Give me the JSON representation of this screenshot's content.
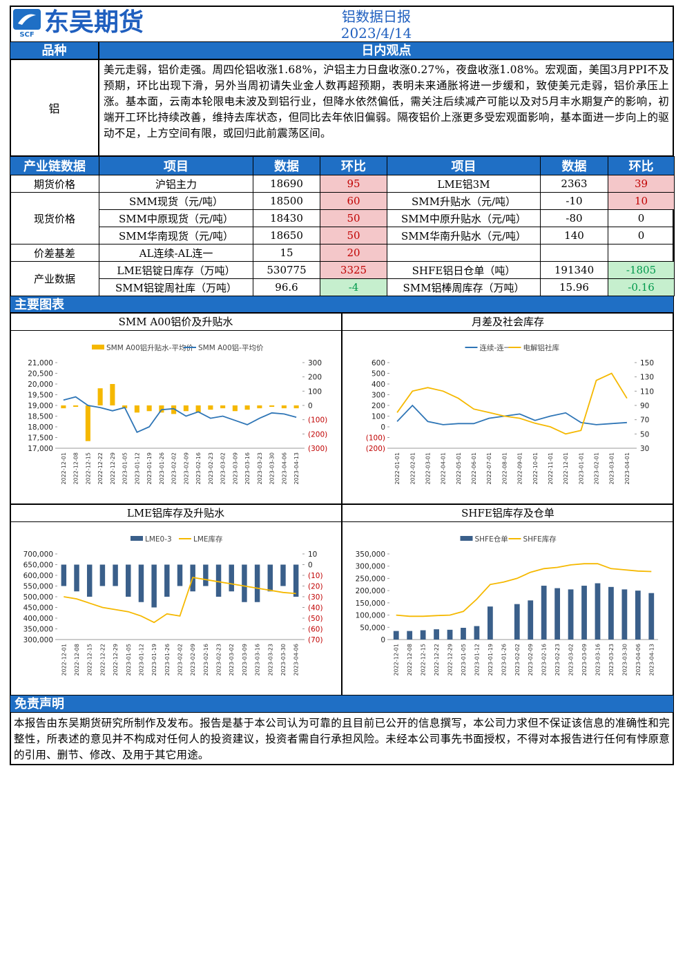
{
  "header": {
    "logo": "东吴期货",
    "logo_sub": "SCF",
    "title": "铝数据日报",
    "date": "2023/4/14"
  },
  "view": {
    "col1": "品种",
    "col2": "日内观点",
    "item": "铝",
    "text": "美元走弱，铝价走强。周四伦铝收涨1.68%，沪铝主力日盘收涨0.27%，夜盘收涨1.08%。宏观面，美国3月PPI不及预期，环比出现下滑，另外当周初请失业金人数再超预期，表明未来通胀将进一步缓和，致使美元走弱，铝价承压上涨。基本面，云南本轮限电未波及到铝行业，但降水依然偏低，需关注后续减产可能以及对5月丰水期复产的影响，初端开工环比持续改善，维持去库状态，但同比去年依旧偏弱。隔夜铝价上涨更多受宏观面影响，基本面进一步向上的驱动不足，上方空间有限，或回归此前震荡区间。"
  },
  "table": {
    "headers": [
      "产业链数据",
      "项目",
      "数据",
      "环比",
      "项目",
      "数据",
      "环比"
    ],
    "groups": [
      {
        "name": "期货价格",
        "rows": [
          [
            "沪铝主力",
            "18690",
            "95",
            "LME铝3M",
            "2363",
            "39"
          ]
        ]
      },
      {
        "name": "现货价格",
        "rows": [
          [
            "SMM现货（元/吨）",
            "18500",
            "60",
            "SMM升贴水（元/吨）",
            "-10",
            "10"
          ],
          [
            "SMM中原现货（元/吨）",
            "18430",
            "50",
            "SMM中原升贴水（元/吨）",
            "-80",
            "0"
          ],
          [
            "SMM华南现货（元/吨）",
            "18650",
            "50",
            "SMM华南升贴水（元/吨）",
            "140",
            "0"
          ]
        ]
      },
      {
        "name": "价差基差",
        "rows": [
          [
            "AL连续-AL连一",
            "15",
            "20"
          ]
        ]
      },
      {
        "name": "产业数据",
        "rows": [
          [
            "LME铝锭日库存（万吨）",
            "530775",
            "3325",
            "SHFE铝日仓单（吨）",
            "191340",
            "-1805"
          ],
          [
            "SMM铝锭周社库（万吨）",
            "96.6",
            "-4",
            "SMM铝棒周库存（万吨）",
            "15.96",
            "-0.16"
          ]
        ]
      }
    ]
  },
  "charts_title": "主要图表",
  "charts": [
    {
      "type": "combo",
      "title": "SMM A00铝价及升贴水",
      "legend": "top",
      "categories": [
        "2022-12-01",
        "2022-12-08",
        "2022-12-15",
        "2022-12-22",
        "2022-12-29",
        "2023-01-05",
        "2023-01-12",
        "2023-01-19",
        "2023-01-26",
        "2023-02-02",
        "2023-02-09",
        "2023-02-16",
        "2023-02-23",
        "2023-03-02",
        "2023-03-09",
        "2023-03-16",
        "2023-03-23",
        "2023-03-30",
        "2023-04-06",
        "2023-04-13"
      ],
      "ylim": [
        17000,
        21000
      ],
      "yticks": [
        {
          "value": 17000,
          "label": "17,000"
        },
        {
          "value": 17500,
          "label": "17,500"
        },
        {
          "value": 18000,
          "label": "18,000"
        },
        {
          "value": 18500,
          "label": "18,500"
        },
        {
          "value": 19000,
          "label": "19,000"
        },
        {
          "value": 19500,
          "label": "19,500"
        },
        {
          "value": 20000,
          "label": "20,000"
        },
        {
          "value": 20500,
          "label": "20,500"
        },
        {
          "value": 21000,
          "label": "21,000"
        }
      ],
      "y2lim": [
        -300,
        300
      ],
      "y2ticks": [
        {
          "value": -300,
          "label": "(300)"
        },
        {
          "value": -200,
          "label": "(200)"
        },
        {
          "value": -100,
          "label": "(100)"
        },
        0,
        100,
        200,
        300
      ],
      "series": [
        {
          "name": "SMM A00铝升贴水-平均价",
          "type": "bar",
          "axis": "y2",
          "color": "#f5b800",
          "values": [
            -20,
            -10,
            -250,
            120,
            150,
            -20,
            -50,
            -40,
            -50,
            -60,
            -40,
            -50,
            -30,
            -20,
            -40,
            -30,
            -20,
            -10,
            -20,
            -20
          ]
        },
        {
          "name": "SMM A00铝-平均价",
          "type": "line",
          "color": "#2e75b6",
          "values": [
            19250,
            19400,
            19000,
            18900,
            18750,
            18900,
            17750,
            18000,
            18800,
            18850,
            18500,
            18700,
            18400,
            18500,
            18300,
            18100,
            18400,
            18650,
            18600,
            18450
          ]
        }
      ]
    },
    {
      "type": "combo",
      "title": "月差及社会库存",
      "legend": "top",
      "categories": [
        "2022-01-01",
        "2022-02-01",
        "2022-03-01",
        "2022-04-01",
        "2022-05-01",
        "2022-06-01",
        "2022-07-01",
        "2022-08-01",
        "2022-09-01",
        "2022-10-01",
        "2022-11-01",
        "2022-12-01",
        "2023-01-01",
        "2023-02-01",
        "2023-03-01",
        "2023-04-01"
      ],
      "ylim": [
        -200,
        600
      ],
      "yticks": [
        {
          "value": -200,
          "label": "(200)"
        },
        {
          "value": -100,
          "label": "(100)"
        },
        0,
        100,
        200,
        300,
        400,
        500,
        600
      ],
      "y2lim": [
        30,
        150
      ],
      "y2ticks": [
        30,
        50,
        70,
        90,
        110,
        130,
        150
      ],
      "series": [
        {
          "name": "连续-连一",
          "type": "line",
          "color": "#2e75b6",
          "values": [
            50,
            200,
            50,
            20,
            30,
            30,
            80,
            100,
            120,
            60,
            100,
            130,
            40,
            20,
            30,
            40
          ]
        },
        {
          "name": "电解铝社库",
          "type": "line",
          "axis": "y2",
          "color": "#f5b800",
          "values": [
            80,
            110,
            115,
            110,
            100,
            85,
            80,
            75,
            72,
            65,
            60,
            50,
            55,
            125,
            135,
            100
          ]
        }
      ]
    },
    {
      "type": "combo",
      "title": "LME铝库存及升贴水",
      "legend": "top",
      "categories": [
        "2022-12-01",
        "2022-12-08",
        "2022-12-15",
        "2022-12-22",
        "2022-12-29",
        "2023-01-05",
        "2023-01-12",
        "2023-01-19",
        "2023-01-26",
        "2023-02-02",
        "2023-02-09",
        "2023-02-16",
        "2023-02-23",
        "2023-03-02",
        "2023-03-09",
        "2023-03-16",
        "2023-03-23",
        "2023-03-30",
        "2023-04-06"
      ],
      "ylim": [
        300000,
        700000
      ],
      "yticks": [
        {
          "value": 300000,
          "label": "300,000"
        },
        {
          "value": 350000,
          "label": "350,000"
        },
        {
          "value": 400000,
          "label": "400,000"
        },
        {
          "value": 450000,
          "label": "450,000"
        },
        {
          "value": 500000,
          "label": "500,000"
        },
        {
          "value": 550000,
          "label": "550,000"
        },
        {
          "value": 600000,
          "label": "600,000"
        },
        {
          "value": 650000,
          "label": "650,000"
        },
        {
          "value": 700000,
          "label": "700,000"
        }
      ],
      "y2lim": [
        -70,
        10
      ],
      "y2ticks": [
        {
          "value": -70,
          "label": "(70)"
        },
        {
          "value": -60,
          "label": "(60)"
        },
        {
          "value": -50,
          "label": "(50)"
        },
        {
          "value": -40,
          "label": "(40)"
        },
        {
          "value": -30,
          "label": "(30)"
        },
        {
          "value": -20,
          "label": "(20)"
        },
        {
          "value": -10,
          "label": "(10)"
        },
        0,
        10
      ],
      "series": [
        {
          "name": "LME0-3",
          "type": "bar",
          "axis": "y2",
          "color": "#3a5f8a",
          "values": [
            -20,
            -25,
            -30,
            -20,
            -20,
            -30,
            -35,
            -40,
            -30,
            -20,
            -25,
            -20,
            -30,
            -25,
            -35,
            -35,
            -25,
            -20,
            -30
          ]
        },
        {
          "name": "LME库存",
          "type": "line",
          "color": "#f5b800",
          "values": [
            500000,
            490000,
            470000,
            450000,
            440000,
            430000,
            410000,
            380000,
            420000,
            410000,
            590000,
            580000,
            570000,
            560000,
            550000,
            540000,
            530000,
            520000,
            515000
          ]
        }
      ]
    },
    {
      "type": "combo",
      "title": "SHFE铝库存及仓单",
      "legend": "top",
      "categories": [
        "2022-12-01",
        "2022-12-08",
        "2022-12-15",
        "2022-12-22",
        "2022-12-29",
        "2023-01-05",
        "2023-01-12",
        "2023-01-19",
        "2023-01-26",
        "2023-02-02",
        "2023-02-09",
        "2023-02-16",
        "2023-02-23",
        "2023-03-02",
        "2023-03-09",
        "2023-03-16",
        "2023-03-23",
        "2023-03-30",
        "2023-04-06",
        "2023-04-13"
      ],
      "ylim": [
        0,
        350000
      ],
      "yticks": [
        0,
        {
          "value": 50000,
          "label": "50,000"
        },
        {
          "value": 100000,
          "label": "100,000"
        },
        {
          "value": 150000,
          "label": "150,000"
        },
        {
          "value": 200000,
          "label": "200,000"
        },
        {
          "value": 250000,
          "label": "250,000"
        },
        {
          "value": 300000,
          "label": "300,000"
        },
        {
          "value": 350000,
          "label": "350,000"
        }
      ],
      "series": [
        {
          "name": "SHFE仓单",
          "type": "bar",
          "color": "#3a5f8a",
          "values": [
            35000,
            35000,
            38000,
            42000,
            40000,
            48000,
            55000,
            135000,
            0,
            145000,
            160000,
            220000,
            210000,
            205000,
            220000,
            230000,
            215000,
            205000,
            200000,
            190000
          ]
        },
        {
          "name": "SHFE库存",
          "type": "line",
          "color": "#f5b800",
          "values": [
            100000,
            95000,
            95000,
            98000,
            100000,
            115000,
            165000,
            225000,
            235000,
            250000,
            275000,
            290000,
            295000,
            305000,
            310000,
            310000,
            290000,
            285000,
            280000,
            278000
          ]
        }
      ]
    }
  ],
  "disclaimer": {
    "title": "免责声明",
    "text": "本报告由东吴期货研究所制作及发布。报告是基于本公司认为可靠的且目前已公开的信息撰写，本公司力求但不保证该信息的准确性和完整性，所表述的意见并不构成对任何人的投资建议，投资者需自行承担风险。未经本公司事先书面授权，不得对本报告进行任何有悖原意的引用、删节、修改、及用于其它用途。"
  }
}
